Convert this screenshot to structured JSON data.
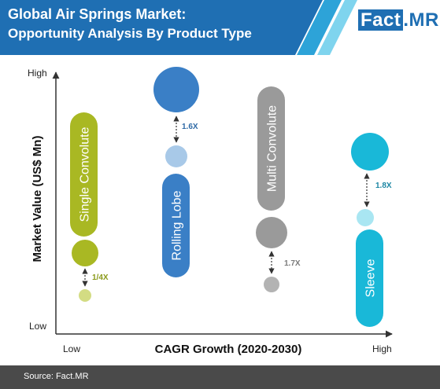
{
  "header": {
    "title_line1": "Global Air Springs Market:",
    "title_line2": "Opportunity Analysis By Product Type",
    "logo_part1": "Fact",
    "logo_part2": ".MR",
    "colors": {
      "band": "#1f6fb3",
      "stripe_light": "#7fd4ee",
      "stripe_mid": "#2da3d8"
    }
  },
  "chart_data": {
    "type": "bubble",
    "title": "",
    "xlabel": "CAGR Growth (2020-2030)",
    "ylabel": "Market Value (US$ Mn)",
    "x_ticks": [
      "Low",
      "High"
    ],
    "y_ticks": [
      "High",
      "Low"
    ],
    "categories": [
      {
        "name": "Single Convolute",
        "color": "#a9b823",
        "light": "#d3dc83",
        "ratio": "1/4X"
      },
      {
        "name": "Rolling Lobe",
        "color": "#3a7fc6",
        "light": "#a8c9e8",
        "ratio": "1.6X"
      },
      {
        "name": "Multi Convolute",
        "color": "#9a9a9a",
        "light": "#b3b3b3",
        "ratio": "1.7X"
      },
      {
        "name": "Sleeve",
        "color": "#19b8d8",
        "light": "#a9e6f2",
        "ratio": "1.8X"
      }
    ]
  },
  "footer": {
    "source": "Source: Fact.MR"
  }
}
